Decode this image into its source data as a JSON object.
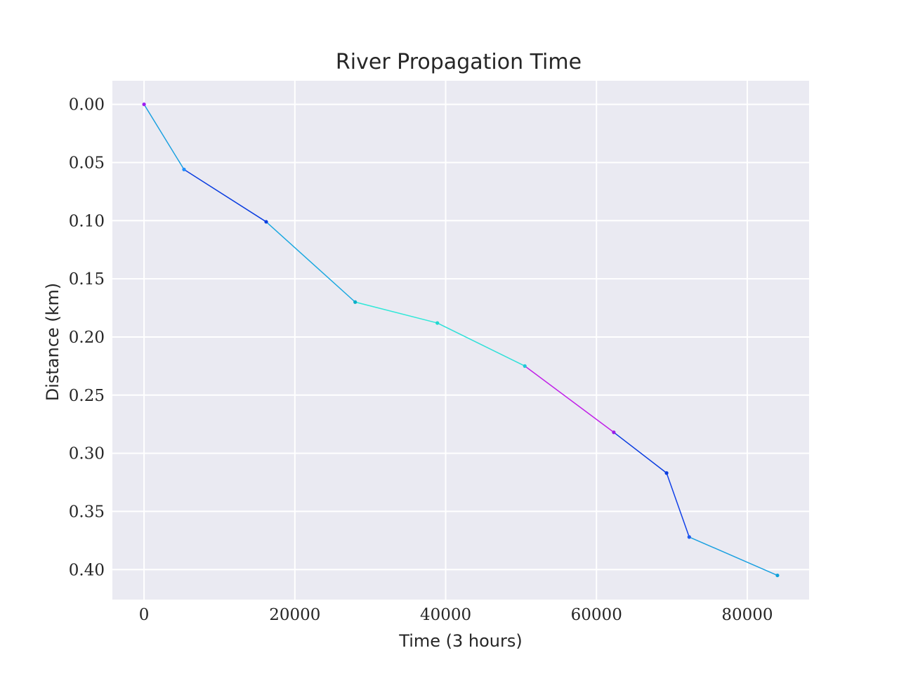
{
  "chart_data": {
    "type": "line",
    "title": "River Propagation Time",
    "xlabel": "Time (3 hours)",
    "ylabel": "Distance (km)",
    "xlim": [
      -4200,
      88200
    ],
    "ylim": [
      0.4258,
      -0.0203
    ],
    "y_inverted": true,
    "grid": true,
    "xticks": [
      0,
      20000,
      40000,
      60000,
      80000
    ],
    "xtick_labels": [
      "0",
      "20000",
      "40000",
      "60000",
      "80000"
    ],
    "yticks": [
      0.0,
      0.05,
      0.1,
      0.15,
      0.2,
      0.25,
      0.3,
      0.35,
      0.4
    ],
    "ytick_labels": [
      "0.00",
      "0.05",
      "0.10",
      "0.15",
      "0.20",
      "0.25",
      "0.30",
      "0.35",
      "0.40"
    ],
    "points": [
      {
        "x": 0,
        "y": 0.0,
        "color": "#a020f0"
      },
      {
        "x": 5300,
        "y": 0.056,
        "color": "#1e90ff"
      },
      {
        "x": 16200,
        "y": 0.101,
        "color": "#0a3de0"
      },
      {
        "x": 28000,
        "y": 0.17,
        "color": "#0ab0c8"
      },
      {
        "x": 38900,
        "y": 0.188,
        "color": "#20d8d0"
      },
      {
        "x": 50500,
        "y": 0.225,
        "color": "#20c8d8"
      },
      {
        "x": 62300,
        "y": 0.282,
        "color": "#9b1de8"
      },
      {
        "x": 69300,
        "y": 0.317,
        "color": "#0a3de0"
      },
      {
        "x": 72300,
        "y": 0.372,
        "color": "#1e5af0"
      },
      {
        "x": 84000,
        "y": 0.405,
        "color": "#10a0d8"
      }
    ],
    "segments": [
      {
        "color": "#1aa0e0"
      },
      {
        "color": "#0a3de0"
      },
      {
        "color": "#1aa8e0"
      },
      {
        "color": "#30e8d8"
      },
      {
        "color": "#30e0d8"
      },
      {
        "color": "#c020e8"
      },
      {
        "color": "#0a3de0"
      },
      {
        "color": "#1040e8"
      },
      {
        "color": "#1aa0e0"
      }
    ]
  }
}
